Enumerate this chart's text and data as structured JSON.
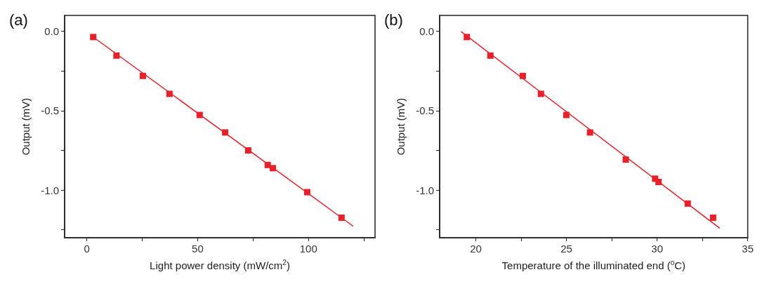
{
  "chart_data": [
    {
      "type": "scatter",
      "title": "(a)",
      "xlabel": "Light power density (mW/cm$^{2}$)",
      "ylabel": "Output (mV)",
      "marker": "square",
      "xlim": [
        -10,
        130
      ],
      "xticks": [
        0,
        {
          "value": 25,
          "label": null
        },
        50,
        {
          "value": 75,
          "label": null
        },
        100,
        {
          "value": 125,
          "label": null
        }
      ],
      "ylim": [
        -1.3,
        0.1
      ],
      "yticks": [
        {
          "value": -1.25,
          "label": null
        },
        {
          "value": -1,
          "label": "-1.0"
        },
        {
          "value": -0.75,
          "label": null
        },
        -0.5,
        {
          "value": -0.25,
          "label": null
        },
        {
          "value": 0,
          "label": "0.0"
        }
      ],
      "series": [
        {
          "color": "#e8202a",
          "x": [
            2.9,
            13.4,
            25.3,
            37.3,
            50.9,
            62.4,
            72.8,
            81.6,
            83.9,
            99.4,
            114.9
          ],
          "values": [
            -0.036,
            -0.153,
            -0.281,
            -0.394,
            -0.527,
            -0.637,
            -0.75,
            -0.842,
            -0.862,
            -1.013,
            -1.174
          ]
        },
        {
          "type": "line",
          "color": "#e8202a",
          "marker": "none",
          "x": [
            2,
            120
          ],
          "values": [
            -0.027,
            -1.226
          ]
        }
      ]
    },
    {
      "type": "scatter",
      "title": "(b)",
      "xlabel": "Temperature of the illuminated end ($^{o}$C)",
      "ylabel": "Output (mV)",
      "marker": "square",
      "xlim": [
        18,
        35
      ],
      "xticks": [
        20,
        {
          "value": 22.5,
          "label": null
        },
        25,
        {
          "value": 27.5,
          "label": null
        },
        30,
        {
          "value": 32.5,
          "label": null
        },
        35
      ],
      "ylim": [
        -1.3,
        0.1
      ],
      "yticks": [
        {
          "value": -1.25,
          "label": null
        },
        {
          "value": -1,
          "label": "-1.0"
        },
        {
          "value": -0.75,
          "label": null
        },
        -0.5,
        {
          "value": -0.25,
          "label": null
        },
        {
          "value": 0,
          "label": "0.0"
        }
      ],
      "series": [
        {
          "color": "#e8202a",
          "x": [
            19.5,
            20.8,
            22.59,
            23.59,
            24.99,
            26.3,
            28.27,
            29.89,
            30.08,
            31.69,
            33.09
          ],
          "values": [
            -0.036,
            -0.153,
            -0.281,
            -0.394,
            -0.527,
            -0.637,
            -0.808,
            -0.928,
            -0.949,
            -1.085,
            -1.174
          ]
        },
        {
          "type": "line",
          "color": "#e8202a",
          "marker": "none",
          "x": [
            19.2,
            33.44
          ],
          "values": [
            -0.003,
            -1.239
          ]
        }
      ]
    }
  ]
}
